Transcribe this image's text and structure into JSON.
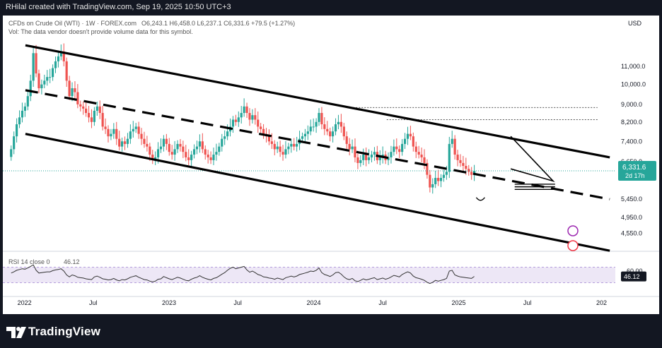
{
  "header": {
    "credit": "RHilal created with TradingView.com, Sep 19, 2025 10:50 UTC+3"
  },
  "footer": {
    "brand": "TradingView",
    "logo_icon": "tradingview-logo-icon"
  },
  "chart_data": {
    "type": "candlestick",
    "title": "CFDs on Crude Oil (WTI) · 1W · FOREX.com",
    "ohlc_label": {
      "O": "O6,243.1",
      "H": "H6,458.0",
      "L": "L6,237.1",
      "C": "C6,331.6",
      "chg": "+79.5 (+1.27%)"
    },
    "vol_note": "Vol: The data vendor doesn't provide volume data for this symbol.",
    "currency": "USD",
    "last_price": "6,331.6",
    "countdown": "2d 17h",
    "price_scale": "log",
    "y_ticks": [
      11000,
      10000,
      9000,
      8200,
      7400,
      6650,
      5450,
      4950,
      4550
    ],
    "y_tick_labels": [
      "11,000.0",
      "10,000.0",
      "9,000.0",
      "8,200.0",
      "7,400.0",
      "6,650.0",
      "5,450.0",
      "4,950.0",
      "4,550.0"
    ],
    "x_ticks": [
      "2022",
      "Jul",
      "2023",
      "Jul",
      "2024",
      "Jul",
      "2025",
      "Jul",
      "202"
    ],
    "x_tick_dates": [
      "2022-01-01",
      "2022-07-01",
      "2023-01-01",
      "2023-07-01",
      "2024-01-01",
      "2024-07-01",
      "2025-01-01",
      "2025-07-01",
      "2026-01-01"
    ],
    "x_range": [
      "2021-12-06",
      "2026-03-01"
    ],
    "y_range": [
      4200,
      12400
    ],
    "up_color": "#26a69a",
    "down_color": "#ef5350",
    "closes_weekly_approx": [
      7100,
      7600,
      8100,
      8400,
      8700,
      8900,
      9400,
      10200,
      11800,
      10600,
      9800,
      10000,
      10200,
      10400,
      10400,
      10900,
      11300,
      11600,
      11900,
      11300,
      10200,
      9400,
      9800,
      9600,
      9000,
      8900,
      8800,
      8600,
      8400,
      8200,
      8700,
      8900,
      8600,
      8000,
      7900,
      7600,
      7700,
      7900,
      7500,
      7200,
      7400,
      7300,
      7500,
      7800,
      7900,
      8000,
      7700,
      7500,
      7300,
      7200,
      6900,
      6700,
      6800,
      7100,
      7200,
      7500,
      7300,
      7000,
      6900,
      7100,
      7300,
      7200,
      7000,
      6800,
      6700,
      6900,
      7100,
      7200,
      7400,
      7100,
      6900,
      6800,
      6700,
      6900,
      7000,
      7200,
      7500,
      7600,
      7800,
      8000,
      8300,
      8200,
      8400,
      8600,
      8900,
      8600,
      8300,
      8500,
      8300,
      8000,
      7900,
      7700,
      7600,
      7400,
      7300,
      7100,
      7200,
      7000,
      6900,
      7100,
      7200,
      7300,
      7200,
      7300,
      7500,
      7600,
      7700,
      7800,
      8000,
      8000,
      8200,
      8600,
      8100,
      7900,
      7800,
      7600,
      7800,
      8100,
      8200,
      8000,
      7600,
      7300,
      7100,
      7200,
      6800,
      6600,
      6700,
      6900,
      6700,
      6800,
      6900,
      7000,
      6700,
      6800,
      6900,
      6700,
      6800,
      7000,
      7200,
      7100,
      7000,
      7300,
      7500,
      7700,
      7600,
      7200,
      7000,
      6900,
      6800,
      6600,
      6200,
      5800,
      5900,
      6100,
      6000,
      6100,
      6200,
      6300,
      7300,
      7500,
      6900,
      6700,
      6600,
      6500,
      6400,
      6300,
      6200,
      6331.6
    ],
    "channel_lines": [
      {
        "style": "solid",
        "from": [
          "2022-02-01",
          12300
        ],
        "to": [
          "2026-02-15",
          6800
        ]
      },
      {
        "style": "dashed",
        "from": [
          "2022-02-01",
          9700
        ],
        "to": [
          "2026-02-15",
          5450
        ]
      },
      {
        "style": "solid",
        "from": [
          "2022-02-01",
          7700
        ],
        "to": [
          "2026-02-15",
          4150
        ]
      }
    ],
    "dotted_levels": [
      {
        "price": 8850,
        "from": "2024-05-01",
        "to": "2026-01-15"
      },
      {
        "price": 8300,
        "from": "2024-08-01",
        "to": "2026-01-15"
      }
    ],
    "rsi": {
      "label": "RSI 14 close 0",
      "value": "46.12",
      "ticks": [
        "60.00",
        "40.00"
      ],
      "levels": [
        70,
        30
      ],
      "values_approx": [
        55,
        58,
        62,
        64,
        66,
        65,
        68,
        72,
        76,
        62,
        55,
        56,
        57,
        58,
        58,
        61,
        63,
        64,
        66,
        60,
        50,
        45,
        50,
        48,
        44,
        43,
        42,
        40,
        39,
        38,
        45,
        47,
        44,
        40,
        39,
        37,
        38,
        41,
        37,
        35,
        38,
        37,
        40,
        44,
        46,
        48,
        44,
        41,
        38,
        37,
        34,
        32,
        34,
        39,
        40,
        46,
        43,
        40,
        38,
        41,
        44,
        42,
        39,
        36,
        35,
        39,
        42,
        44,
        48,
        44,
        41,
        39,
        37,
        41,
        43,
        47,
        52,
        56,
        62,
        67,
        70,
        66,
        68,
        70,
        72,
        63,
        57,
        60,
        56,
        51,
        49,
        45,
        44,
        42,
        41,
        39,
        42,
        40,
        38,
        43,
        45,
        47,
        45,
        47,
        51,
        53,
        55,
        57,
        60,
        59,
        62,
        68,
        56,
        51,
        49,
        46,
        50,
        56,
        57,
        52,
        45,
        40,
        38,
        41,
        35,
        33,
        36,
        40,
        37,
        39,
        41,
        43,
        38,
        40,
        42,
        39,
        41,
        45,
        49,
        47,
        45,
        51,
        55,
        58,
        55,
        47,
        43,
        41,
        39,
        36,
        31,
        28,
        31,
        36,
        34,
        36,
        38,
        41,
        60,
        62,
        50,
        47,
        45,
        44,
        43,
        42,
        41,
        46.12
      ]
    }
  }
}
